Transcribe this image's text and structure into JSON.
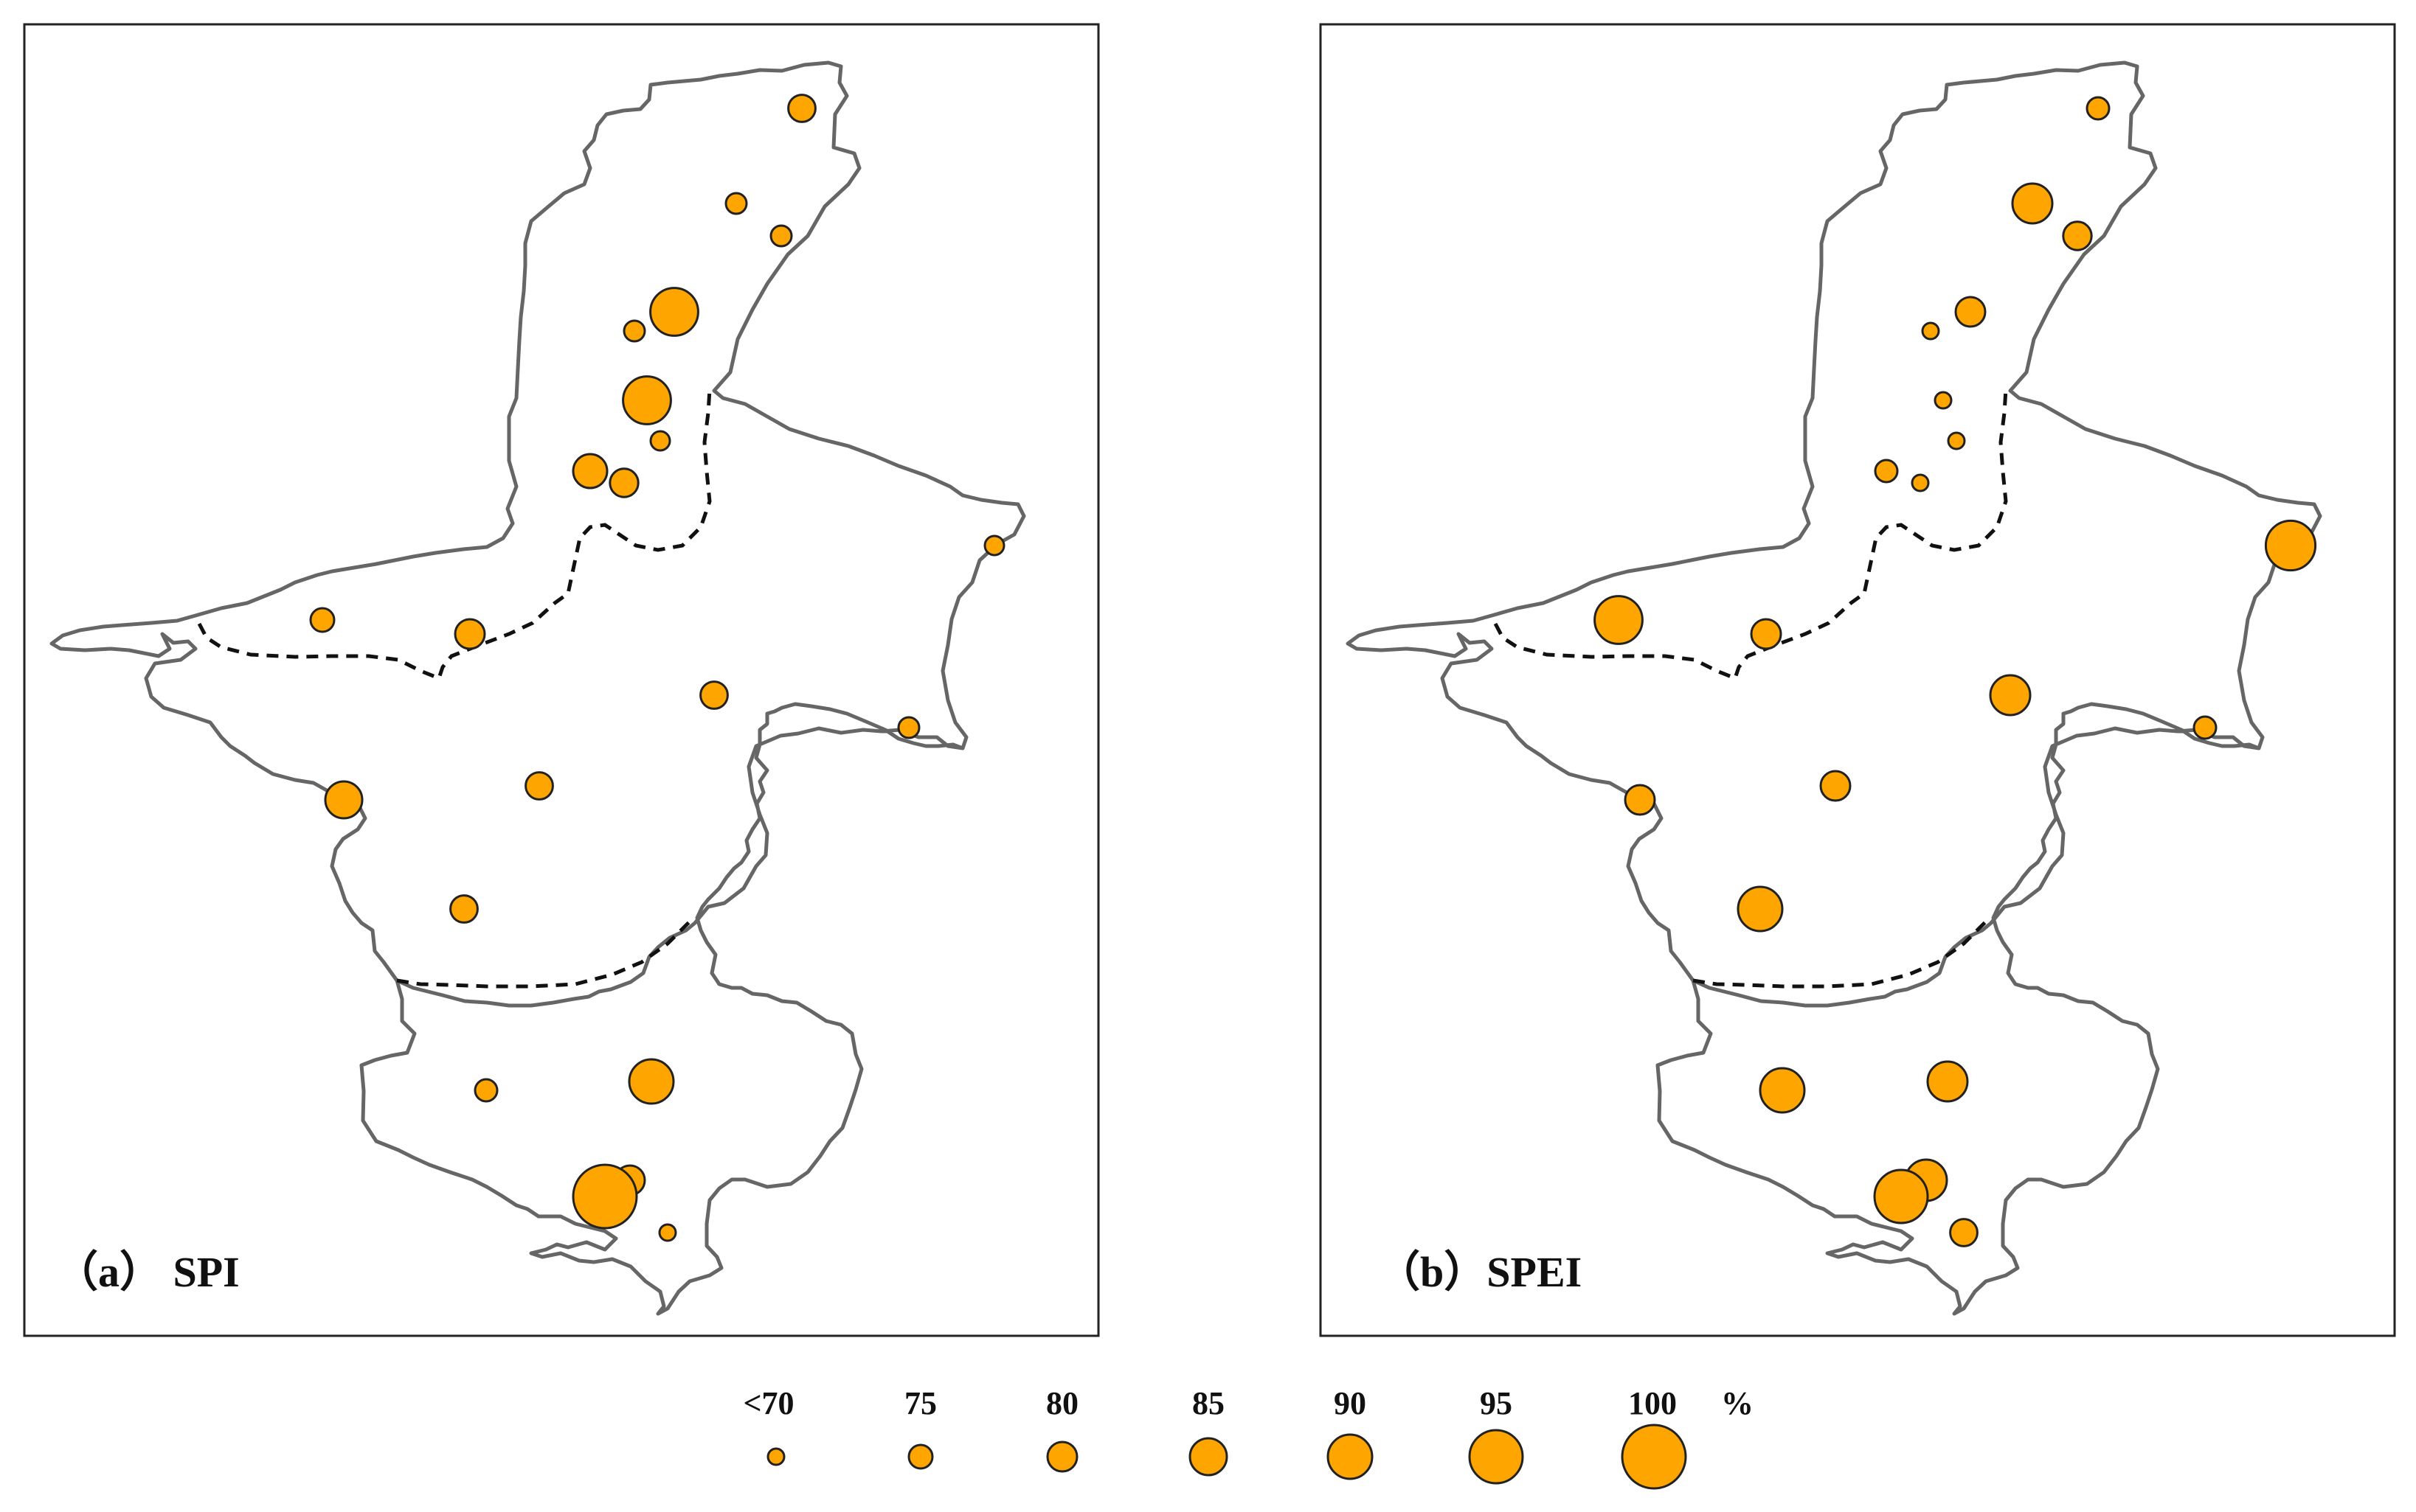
{
  "panels": [
    {
      "label": "（a） SPI",
      "stations": [
        {
          "id": "s01",
          "value": 75
        },
        {
          "id": "s02",
          "value": 80
        },
        {
          "id": "s03",
          "value": 72
        },
        {
          "id": "s04",
          "value": 85
        },
        {
          "id": "s05",
          "value": 73
        },
        {
          "id": "s06",
          "value": 92
        },
        {
          "id": "s07",
          "value": 72
        },
        {
          "id": "s08",
          "value": 83
        },
        {
          "id": "s09",
          "value": 79
        },
        {
          "id": "s10",
          "value": 92
        },
        {
          "id": "s11",
          "value": 73
        },
        {
          "id": "s12",
          "value": 73
        },
        {
          "id": "s13",
          "value": 78
        },
        {
          "id": "s14",
          "value": 73
        },
        {
          "id": "s15",
          "value": 78
        },
        {
          "id": "s16",
          "value": 78
        },
        {
          "id": "s17",
          "value": 78
        },
        {
          "id": "s18",
          "value": 74
        },
        {
          "id": "s19",
          "value": 90
        },
        {
          "id": "s20",
          "value": 80
        },
        {
          "id": "s21",
          "value": 100
        },
        {
          "id": "s22",
          "value": 70
        }
      ]
    },
    {
      "label": "（b）SPEI",
      "stations": [
        {
          "id": "s01",
          "value": 92
        },
        {
          "id": "s02",
          "value": 80
        },
        {
          "id": "s03",
          "value": 93
        },
        {
          "id": "s04",
          "value": 80
        },
        {
          "id": "s05",
          "value": 70
        },
        {
          "id": "s06",
          "value": 70
        },
        {
          "id": "s07",
          "value": 70
        },
        {
          "id": "s08",
          "value": 74
        },
        {
          "id": "s09",
          "value": 70
        },
        {
          "id": "s10",
          "value": 80
        },
        {
          "id": "s11",
          "value": 87
        },
        {
          "id": "s12",
          "value": 79
        },
        {
          "id": "s13",
          "value": 74
        },
        {
          "id": "s14",
          "value": 74
        },
        {
          "id": "s15",
          "value": 87
        },
        {
          "id": "s16",
          "value": 80
        },
        {
          "id": "s17",
          "value": 90
        },
        {
          "id": "s18",
          "value": 90
        },
        {
          "id": "s19",
          "value": 87
        },
        {
          "id": "s20",
          "value": 88
        },
        {
          "id": "s21",
          "value": 95
        },
        {
          "id": "s22",
          "value": 78
        }
      ]
    }
  ],
  "legend": {
    "items": [
      {
        "label": "<70",
        "value": 70
      },
      {
        "label": "75",
        "value": 75
      },
      {
        "label": "80",
        "value": 80
      },
      {
        "label": "85",
        "value": 85
      },
      {
        "label": "90",
        "value": 90
      },
      {
        "label": "95",
        "value": 95
      },
      {
        "label": "100",
        "value": 100
      }
    ],
    "unit": "%"
  },
  "colors": {
    "marker_fill": "#FFA500",
    "marker_stroke": "#222222",
    "outline": "#666666",
    "zone_line": "#111111"
  }
}
